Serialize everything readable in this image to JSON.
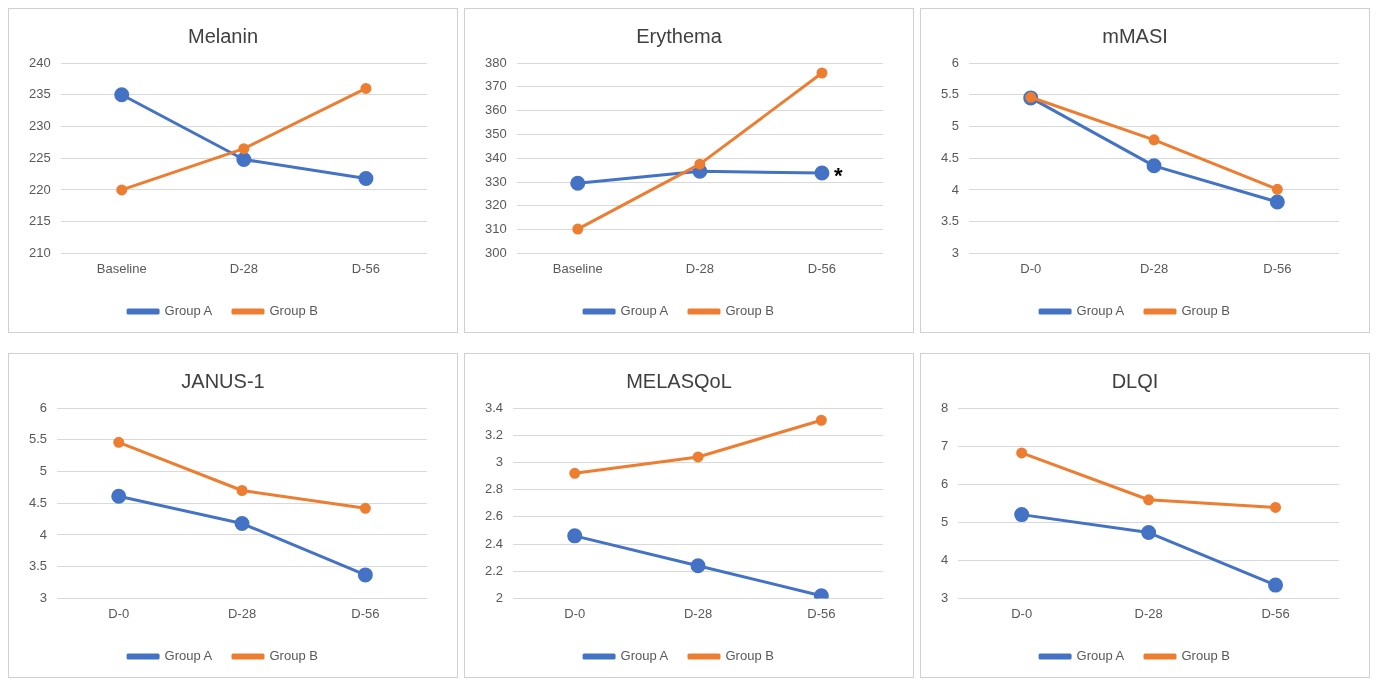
{
  "chart_data": [
    {
      "type": "line",
      "title": "Melanin",
      "categories": [
        "Baseline",
        "D-28",
        "D-56"
      ],
      "ylim": [
        210,
        240
      ],
      "yticks": [
        210,
        215,
        220,
        225,
        230,
        235,
        240
      ],
      "grid": "y",
      "legend": "bottom",
      "marker": "circle",
      "series": [
        {
          "name": "Group A",
          "color": "#4472c4",
          "values": [
            235,
            224.8,
            221.8
          ]
        },
        {
          "name": "Group B",
          "color": "#ed7d31",
          "values": [
            220,
            226.5,
            236
          ]
        }
      ]
    },
    {
      "type": "line",
      "title": "Erythema",
      "categories": [
        "Baseline",
        "D-28",
        "D-56"
      ],
      "ylim": [
        300,
        380
      ],
      "yticks": [
        300,
        310,
        320,
        330,
        340,
        350,
        360,
        370,
        380
      ],
      "grid": "y",
      "legend": "bottom",
      "marker": "circle",
      "annotations": [
        {
          "text": "*",
          "x": "D-56",
          "y": 333.8
        }
      ],
      "series": [
        {
          "name": "Group A",
          "color": "#4472c4",
          "values": [
            329.5,
            334.5,
            333.8
          ]
        },
        {
          "name": "Group B",
          "color": "#ed7d31",
          "values": [
            310.2,
            337.5,
            375.8
          ]
        }
      ]
    },
    {
      "type": "line",
      "title": "mMASI",
      "categories": [
        "D-0",
        "D-28",
        "D-56"
      ],
      "ylim": [
        3,
        6
      ],
      "yticks": [
        3,
        3.5,
        4,
        4.5,
        5,
        5.5,
        6
      ],
      "grid": "y",
      "legend": "bottom",
      "marker": "circle",
      "series": [
        {
          "name": "Group A",
          "color": "#4472c4",
          "values": [
            5.45,
            4.38,
            3.81
          ]
        },
        {
          "name": "Group B",
          "color": "#ed7d31",
          "values": [
            5.46,
            4.79,
            4.01
          ]
        }
      ]
    },
    {
      "type": "line",
      "title": "JANUS-1",
      "categories": [
        "D-0",
        "D-28",
        "D-56"
      ],
      "ylim": [
        3,
        6
      ],
      "yticks": [
        3,
        3.5,
        4,
        4.5,
        5,
        5.5,
        6
      ],
      "grid": "y",
      "legend": "bottom",
      "marker": "circle",
      "series": [
        {
          "name": "Group A",
          "color": "#4472c4",
          "values": [
            4.61,
            4.18,
            3.37
          ]
        },
        {
          "name": "Group B",
          "color": "#ed7d31",
          "values": [
            5.46,
            4.7,
            4.42
          ]
        }
      ]
    },
    {
      "type": "line",
      "title": "MELASQoL",
      "categories": [
        "D-0",
        "D-28",
        "D-56"
      ],
      "ylim": [
        2,
        3.4
      ],
      "yticks": [
        2,
        2.2,
        2.4,
        2.6,
        2.8,
        3,
        3.2,
        3.4
      ],
      "grid": "y",
      "legend": "bottom",
      "marker": "circle",
      "series": [
        {
          "name": "Group A",
          "color": "#4472c4",
          "values": [
            2.46,
            2.24,
            2.02
          ]
        },
        {
          "name": "Group B",
          "color": "#ed7d31",
          "values": [
            2.92,
            3.04,
            3.31
          ]
        }
      ]
    },
    {
      "type": "line",
      "title": "DLQI",
      "categories": [
        "D-0",
        "D-28",
        "D-56"
      ],
      "ylim": [
        3,
        8
      ],
      "yticks": [
        3,
        4,
        5,
        6,
        7,
        8
      ],
      "grid": "y",
      "legend": "bottom",
      "marker": "circle",
      "series": [
        {
          "name": "Group A",
          "color": "#4472c4",
          "values": [
            5.2,
            4.73,
            3.35
          ]
        },
        {
          "name": "Group B",
          "color": "#ed7d31",
          "values": [
            6.82,
            5.59,
            5.39
          ]
        }
      ]
    }
  ]
}
